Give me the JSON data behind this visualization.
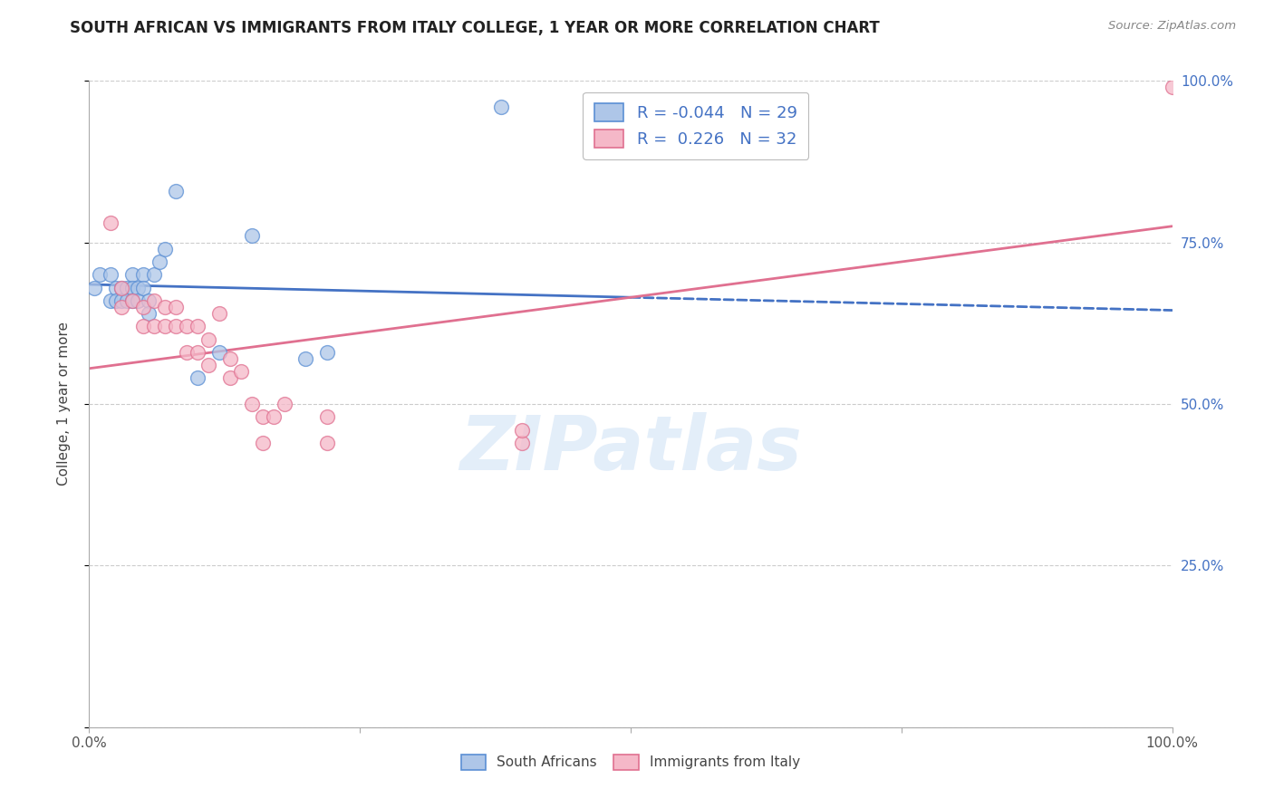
{
  "title": "SOUTH AFRICAN VS IMMIGRANTS FROM ITALY COLLEGE, 1 YEAR OR MORE CORRELATION CHART",
  "source": "Source: ZipAtlas.com",
  "ylabel": "College, 1 year or more",
  "legend_blue_r": "-0.044",
  "legend_blue_n": "29",
  "legend_pink_r": "0.226",
  "legend_pink_n": "32",
  "blue_color": "#aec6e8",
  "pink_color": "#f5b8c8",
  "blue_edge_color": "#5b8fd4",
  "pink_edge_color": "#e07090",
  "blue_line_color": "#4472C4",
  "pink_line_color": "#e07090",
  "watermark": "ZIPatlas",
  "blue_scatter_x": [
    0.005,
    0.01,
    0.02,
    0.02,
    0.025,
    0.025,
    0.03,
    0.03,
    0.035,
    0.035,
    0.04,
    0.04,
    0.04,
    0.045,
    0.045,
    0.05,
    0.05,
    0.055,
    0.055,
    0.06,
    0.065,
    0.07,
    0.08,
    0.1,
    0.12,
    0.15,
    0.2,
    0.22,
    0.38
  ],
  "blue_scatter_y": [
    0.68,
    0.7,
    0.7,
    0.66,
    0.68,
    0.66,
    0.68,
    0.66,
    0.68,
    0.66,
    0.7,
    0.68,
    0.66,
    0.68,
    0.66,
    0.7,
    0.68,
    0.66,
    0.64,
    0.7,
    0.72,
    0.74,
    0.83,
    0.54,
    0.58,
    0.76,
    0.57,
    0.58,
    0.96
  ],
  "pink_scatter_x": [
    0.02,
    0.03,
    0.03,
    0.04,
    0.05,
    0.05,
    0.06,
    0.06,
    0.07,
    0.07,
    0.08,
    0.08,
    0.09,
    0.09,
    0.1,
    0.1,
    0.11,
    0.11,
    0.12,
    0.13,
    0.13,
    0.14,
    0.15,
    0.16,
    0.16,
    0.17,
    0.18,
    0.22,
    0.22,
    0.4,
    0.4,
    1.0
  ],
  "pink_scatter_y": [
    0.78,
    0.68,
    0.65,
    0.66,
    0.65,
    0.62,
    0.66,
    0.62,
    0.65,
    0.62,
    0.65,
    0.62,
    0.62,
    0.58,
    0.62,
    0.58,
    0.6,
    0.56,
    0.64,
    0.57,
    0.54,
    0.55,
    0.5,
    0.48,
    0.44,
    0.48,
    0.5,
    0.48,
    0.44,
    0.44,
    0.46,
    0.99
  ],
  "blue_trend_x0": 0.0,
  "blue_trend_x_cross": 0.5,
  "blue_trend_x1": 1.0,
  "blue_trend_y0": 0.685,
  "blue_trend_y_cross": 0.665,
  "blue_trend_y1": 0.645,
  "pink_trend_x0": 0.0,
  "pink_trend_x1": 1.0,
  "pink_trend_y0": 0.555,
  "pink_trend_y1": 0.775,
  "xlim": [
    0,
    1.0
  ],
  "ylim": [
    0,
    1.0
  ],
  "xticks": [
    0.0,
    0.25,
    0.5,
    0.75,
    1.0
  ],
  "xtick_labels": [
    "0.0%",
    "",
    "",
    "",
    "100.0%"
  ],
  "yticks": [
    0.0,
    0.25,
    0.5,
    0.75,
    1.0
  ],
  "right_ytick_labels": [
    "25.0%",
    "50.0%",
    "75.0%",
    "100.0%"
  ],
  "right_ytick_colors": [
    "#4472C4",
    "#4472C4",
    "#4472C4",
    "#4472C4"
  ]
}
